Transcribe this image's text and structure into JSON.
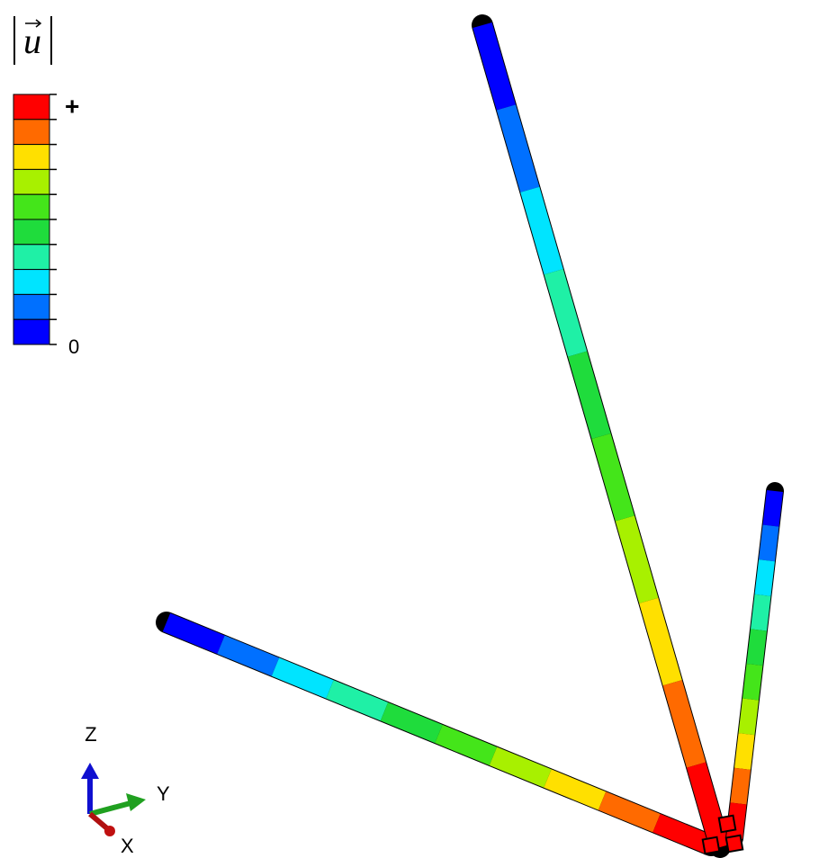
{
  "legend": {
    "title": "u",
    "max_label": "+",
    "min_label": "0",
    "colors": [
      "#ff0000",
      "#ff6a00",
      "#ffe000",
      "#a8f000",
      "#44e51a",
      "#1fdc3c",
      "#1ff0a6",
      "#00e4ff",
      "#0070ff",
      "#0000ff"
    ]
  },
  "triad": {
    "z": "Z",
    "y": "Y",
    "x": "X"
  }
}
